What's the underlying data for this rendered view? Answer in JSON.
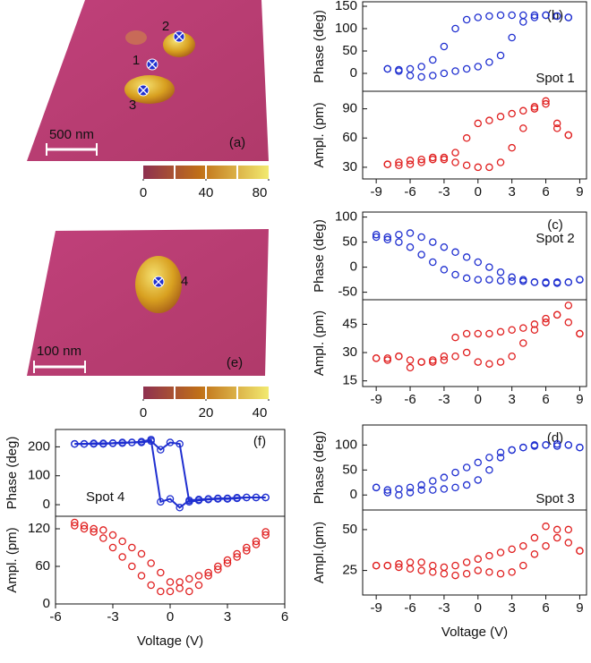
{
  "chart_data": [
    {
      "type": "image",
      "label": "(a)",
      "scale_bar": "500 nm",
      "spots": [
        "1",
        "2",
        "3"
      ],
      "clim": [
        0,
        80
      ],
      "colorbar_ticks": [
        0,
        40,
        80
      ]
    },
    {
      "type": "image",
      "label": "(e)",
      "scale_bar": "100 nm",
      "spots": [
        "4"
      ],
      "clim": [
        0,
        40
      ],
      "colorbar_ticks": [
        0,
        20,
        40
      ]
    },
    {
      "type": "scatter",
      "ylabel": "Phase (deg)",
      "annotations": [
        "(b)",
        "Spot 1"
      ],
      "xlim": [
        -10.2,
        9.6
      ],
      "ylim": [
        -40,
        160
      ],
      "yticks": [
        0,
        50,
        100,
        150
      ],
      "series": [
        {
          "color": "#1f2fd0",
          "x": [
            -8,
            -7,
            -6,
            -5,
            -4,
            -3,
            -2,
            -1,
            0,
            1,
            2,
            3,
            4,
            5,
            6,
            7,
            8
          ],
          "values": [
            10,
            5,
            -5,
            -8,
            -5,
            0,
            5,
            10,
            15,
            25,
            40,
            80,
            115,
            125,
            130,
            128,
            125
          ]
        },
        {
          "color": "#1f2fd0",
          "x": [
            8,
            7,
            6,
            5,
            4,
            3,
            2,
            1,
            0,
            -1,
            -2,
            -3,
            -4,
            -5,
            -6,
            -7,
            -8
          ],
          "values": [
            125,
            128,
            130,
            130,
            130,
            130,
            130,
            128,
            125,
            120,
            100,
            60,
            30,
            15,
            10,
            8,
            10
          ]
        }
      ]
    },
    {
      "type": "scatter",
      "ylabel": "Ampl. (pm)",
      "xlim": [
        -10.2,
        9.6
      ],
      "ylim": [
        18,
        108
      ],
      "yticks": [
        30,
        60,
        90
      ],
      "xticks": [
        -9,
        -6,
        -3,
        0,
        3,
        6,
        9
      ],
      "series": [
        {
          "color": "#e02020",
          "x": [
            -8,
            -7,
            -6,
            -5,
            -4,
            -3,
            -2,
            -1,
            0,
            1,
            2,
            3,
            4,
            5,
            6,
            7,
            8
          ],
          "values": [
            33,
            35,
            37,
            38,
            40,
            38,
            35,
            32,
            30,
            30,
            35,
            50,
            70,
            90,
            98,
            70,
            63
          ]
        },
        {
          "color": "#e02020",
          "x": [
            8,
            7,
            6,
            5,
            4,
            3,
            2,
            1,
            0,
            -1,
            -2,
            -3,
            -4,
            -5,
            -6,
            -7,
            -8
          ],
          "values": [
            63,
            75,
            95,
            92,
            88,
            85,
            82,
            78,
            75,
            60,
            45,
            40,
            38,
            35,
            33,
            32,
            33
          ]
        }
      ]
    },
    {
      "type": "scatter",
      "ylabel": "Phase (deg)",
      "annotations": [
        "(c)",
        "Spot 2"
      ],
      "xlim": [
        -10.2,
        9.6
      ],
      "ylim": [
        -65,
        110
      ],
      "yticks": [
        -50,
        0,
        50,
        100
      ],
      "series": [
        {
          "color": "#1f2fd0",
          "x": [
            -9,
            -8,
            -7,
            -6,
            -5,
            -4,
            -3,
            -2,
            -1,
            0,
            1,
            2,
            3,
            4,
            5,
            6,
            7,
            8,
            9
          ],
          "values": [
            65,
            60,
            65,
            68,
            60,
            50,
            40,
            30,
            20,
            10,
            0,
            -10,
            -20,
            -25,
            -30,
            -30,
            -32,
            -30,
            -25
          ]
        },
        {
          "color": "#1f2fd0",
          "x": [
            9,
            8,
            7,
            6,
            5,
            4,
            3,
            2,
            1,
            0,
            -1,
            -2,
            -3,
            -4,
            -5,
            -6,
            -7,
            -8,
            -9
          ],
          "values": [
            -25,
            -30,
            -30,
            -32,
            -30,
            -28,
            -28,
            -27,
            -25,
            -25,
            -22,
            -15,
            -5,
            10,
            25,
            40,
            50,
            55,
            60
          ]
        }
      ]
    },
    {
      "type": "scatter",
      "ylabel": "Ampl. (pm)",
      "xlim": [
        -10.2,
        9.6
      ],
      "ylim": [
        12,
        58
      ],
      "yticks": [
        15,
        30,
        45
      ],
      "xticks": [
        -9,
        -6,
        -3,
        0,
        3,
        6,
        9
      ],
      "series": [
        {
          "color": "#e02020",
          "x": [
            -9,
            -8,
            -7,
            -6,
            -5,
            -4,
            -3,
            -2,
            -1,
            0,
            1,
            2,
            3,
            4,
            5,
            6,
            7,
            8,
            9
          ],
          "values": [
            27,
            27,
            28,
            26,
            25,
            25,
            26,
            28,
            30,
            25,
            24,
            25,
            28,
            35,
            42,
            46,
            50,
            55,
            40
          ]
        },
        {
          "color": "#e02020",
          "x": [
            9,
            8,
            7,
            6,
            5,
            4,
            3,
            2,
            1,
            0,
            -1,
            -2,
            -3,
            -4,
            -5,
            -6,
            -7,
            -8,
            -9
          ],
          "values": [
            40,
            46,
            50,
            48,
            45,
            43,
            42,
            41,
            40,
            40,
            40,
            38,
            28,
            26,
            25,
            22,
            28,
            26,
            27
          ]
        }
      ]
    },
    {
      "type": "scatter",
      "ylabel": "Phase (deg)",
      "annotations": [
        "(d)",
        "Spot 3"
      ],
      "xlim": [
        -10.2,
        9.6
      ],
      "ylim": [
        -30,
        140
      ],
      "yticks": [
        0,
        50,
        100
      ],
      "series": [
        {
          "color": "#1f2fd0",
          "x": [
            -9,
            -8,
            -7,
            -6,
            -5,
            -4,
            -3,
            -2,
            -1,
            0,
            1,
            2,
            3,
            4,
            5,
            6,
            7,
            8,
            9
          ],
          "values": [
            15,
            5,
            0,
            5,
            10,
            10,
            12,
            15,
            20,
            30,
            50,
            75,
            90,
            95,
            100,
            100,
            98,
            100,
            95
          ]
        },
        {
          "color": "#1f2fd0",
          "x": [
            9,
            8,
            7,
            6,
            5,
            4,
            3,
            2,
            1,
            0,
            -1,
            -2,
            -3,
            -4,
            -5,
            -6,
            -7,
            -8,
            -9
          ],
          "values": [
            95,
            100,
            102,
            100,
            98,
            95,
            90,
            85,
            75,
            65,
            55,
            45,
            35,
            28,
            20,
            15,
            12,
            10,
            15
          ]
        }
      ]
    },
    {
      "type": "scatter",
      "ylabel": "Ampl.(pm)",
      "xlabel": "Voltage (V)",
      "xlim": [
        -10.2,
        9.6
      ],
      "ylim": [
        10,
        62
      ],
      "yticks": [
        25,
        50
      ],
      "xticks": [
        -9,
        -6,
        -3,
        0,
        3,
        6,
        9
      ],
      "series": [
        {
          "color": "#e02020",
          "x": [
            -9,
            -8,
            -7,
            -6,
            -5,
            -4,
            -3,
            -2,
            -1,
            0,
            1,
            2,
            3,
            4,
            5,
            6,
            7,
            8,
            9
          ],
          "values": [
            28,
            28,
            27,
            26,
            25,
            24,
            23,
            22,
            23,
            25,
            24,
            23,
            24,
            28,
            35,
            40,
            45,
            50,
            37
          ]
        },
        {
          "color": "#e02020",
          "x": [
            9,
            8,
            7,
            6,
            5,
            4,
            3,
            2,
            1,
            0,
            -1,
            -2,
            -3,
            -4,
            -5,
            -6,
            -7,
            -8,
            -9
          ],
          "values": [
            37,
            42,
            50,
            52,
            45,
            40,
            38,
            36,
            34,
            32,
            30,
            28,
            27,
            28,
            30,
            30,
            29,
            28,
            28
          ]
        }
      ]
    },
    {
      "type": "line",
      "ylabel": "Phase (deg)",
      "annotations": [
        "(f)",
        "Spot 4"
      ],
      "xlim": [
        -6,
        6
      ],
      "ylim": [
        -40,
        260
      ],
      "yticks": [
        0,
        100,
        200
      ],
      "series": [
        {
          "color": "#1f2fd0",
          "x": [
            -5,
            -4.5,
            -4,
            -3.5,
            -3,
            -2.5,
            -2,
            -1.5,
            -1,
            -0.5,
            0,
            0.5,
            1,
            1.5,
            2,
            2.5,
            3,
            3.5,
            4,
            4.5,
            5
          ],
          "values": [
            210,
            210,
            212,
            212,
            213,
            215,
            215,
            218,
            225,
            10,
            20,
            -10,
            15,
            18,
            20,
            22,
            22,
            24,
            25,
            25,
            25
          ]
        },
        {
          "color": "#1f2fd0",
          "x": [
            5,
            4.5,
            4,
            3.5,
            3,
            2.5,
            2,
            1.5,
            1,
            0.5,
            0,
            -0.5,
            -1,
            -1.5,
            -2,
            -2.5,
            -3,
            -3.5,
            -4,
            -4.5,
            -5
          ],
          "values": [
            25,
            25,
            25,
            22,
            20,
            20,
            18,
            15,
            10,
            210,
            215,
            190,
            220,
            215,
            215,
            213,
            212,
            210,
            210,
            210,
            210
          ]
        }
      ]
    },
    {
      "type": "scatter",
      "ylabel": "Ampl. (pm)",
      "xlabel": "Voltage (V)",
      "xlim": [
        -6,
        6
      ],
      "ylim": [
        0,
        140
      ],
      "yticks": [
        0,
        60,
        120
      ],
      "xticks": [
        -6,
        -3,
        0,
        3,
        6
      ],
      "series": [
        {
          "color": "#e02020",
          "x": [
            -5,
            -4.5,
            -4,
            -3.5,
            -3,
            -2.5,
            -2,
            -1.5,
            -1,
            -0.5,
            0,
            0.5,
            1,
            1.5,
            2,
            2.5,
            3,
            3.5,
            4,
            4.5,
            5
          ],
          "values": [
            125,
            125,
            120,
            118,
            110,
            100,
            90,
            80,
            65,
            50,
            35,
            25,
            20,
            30,
            45,
            55,
            65,
            75,
            85,
            95,
            110
          ]
        },
        {
          "color": "#e02020",
          "x": [
            5,
            4.5,
            4,
            3.5,
            3,
            2.5,
            2,
            1.5,
            1,
            0.5,
            0,
            -0.5,
            -1,
            -1.5,
            -2,
            -2.5,
            -3,
            -3.5,
            -4,
            -4.5,
            -5
          ],
          "values": [
            115,
            100,
            90,
            80,
            70,
            60,
            50,
            45,
            40,
            35,
            20,
            20,
            30,
            45,
            60,
            75,
            90,
            105,
            115,
            120,
            130
          ]
        }
      ]
    }
  ]
}
